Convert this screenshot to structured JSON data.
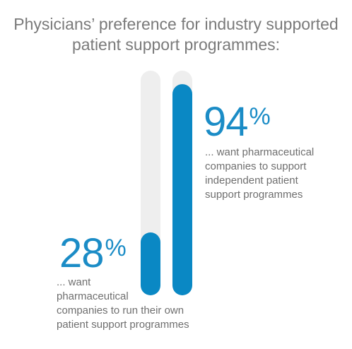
{
  "title": {
    "line1": "Physicians’ preference for industry supported",
    "line2": "patient support programmes:"
  },
  "colors": {
    "track": "#eeeeee",
    "fill": "#0a88c4",
    "accent_text": "#1b8cc6",
    "body_text": "#6f6f6f",
    "title_text": "#7a7a7a"
  },
  "chart_data": {
    "type": "bar",
    "orientation": "vertical",
    "ylim": [
      0,
      100
    ],
    "categories": [
      "run their own programmes",
      "support independent programmes"
    ],
    "values": [
      28,
      94
    ],
    "value_labels": [
      {
        "number": "28",
        "unit": "%"
      },
      {
        "number": "94",
        "unit": "%"
      }
    ],
    "annotations": [
      [
        "... want",
        "pharmaceutical",
        "companies to run their own",
        "patient support programmes"
      ],
      [
        "... want pharmaceutical",
        "companies to support",
        "independent patient",
        "support programmes"
      ]
    ]
  }
}
